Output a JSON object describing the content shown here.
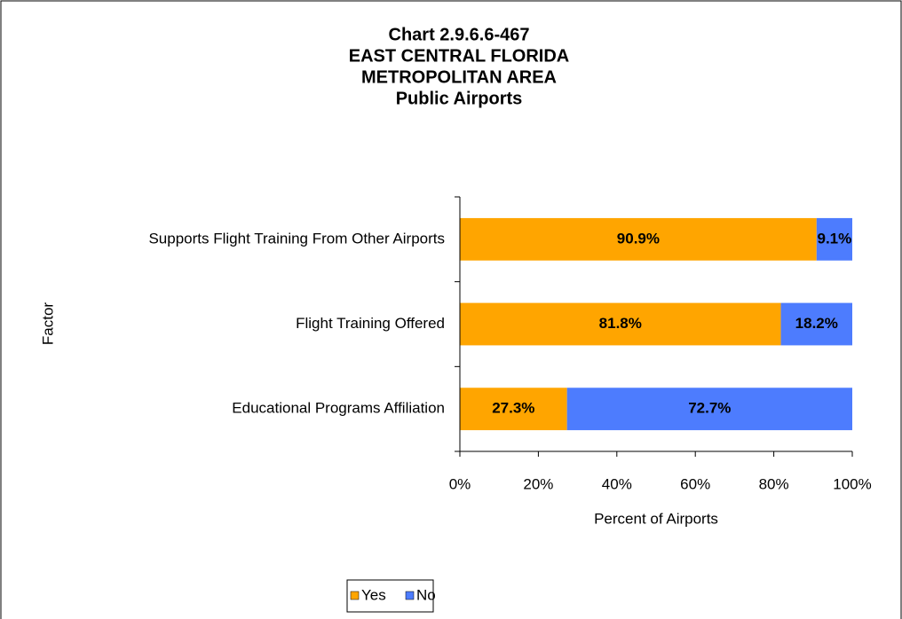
{
  "chart_data": {
    "type": "stacked_barh",
    "title": [
      "Chart 2.9.6.6-467",
      "EAST CENTRAL FLORIDA",
      "METROPOLITAN AREA",
      "Public Airports"
    ],
    "xlabel": "Percent of Airports",
    "ylabel": "Factor",
    "categories": [
      "Supports Flight Training From Other Airports",
      "Flight Training Offered",
      "Educational Programs Affiliation"
    ],
    "series": [
      {
        "name": "Yes",
        "color": "#FFA500",
        "values": [
          90.9,
          81.8,
          27.3
        ],
        "value_labels": [
          "90.9%",
          "81.8%",
          "27.3%"
        ]
      },
      {
        "name": "No",
        "color": "#4D7CFE",
        "values": [
          9.1,
          18.2,
          72.7
        ],
        "value_labels": [
          "9.1%",
          "18.2%",
          "72.7%"
        ]
      }
    ],
    "xlim": [
      0,
      100
    ],
    "xticks": [
      {
        "value": 0,
        "label": "0%"
      },
      {
        "value": 20,
        "label": "20%"
      },
      {
        "value": 40,
        "label": "40%"
      },
      {
        "value": 60,
        "label": "60%"
      },
      {
        "value": 80,
        "label": "80%"
      },
      {
        "value": 100,
        "label": "100%"
      }
    ],
    "legend": "bottom"
  }
}
